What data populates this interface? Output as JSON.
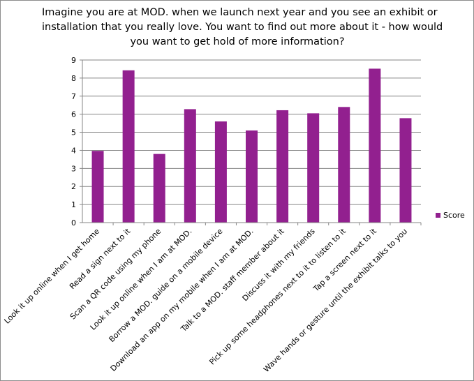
{
  "chart_data": {
    "type": "bar",
    "title_lines": [
      "Imagine you are at MOD. when we launch next year and you see an exhibit or",
      "installation that you really love. You want to find out more  about  it - how would",
      "you want to get hold of more information?"
    ],
    "categories": [
      "Look it up online when I get home",
      "Read a sign next to it",
      "Scan a QR code using my phone",
      "Look it up online when I am at MOD.",
      "Borrow a MOD. guide on a mobile device",
      "Download an app on my mobile when I am at MOD.",
      "Talk to a MOD. staff member about it",
      "Discuss it with my friends",
      "Pick up some headphones next to it to listen to it",
      "Tap a screen next to it",
      "Wave hands or gesture until the exhibit talks to you"
    ],
    "series": [
      {
        "name": "Score",
        "color": "#92208f",
        "values": [
          3.97,
          8.43,
          3.8,
          6.28,
          5.6,
          5.1,
          6.22,
          6.05,
          6.4,
          8.52,
          5.78
        ]
      }
    ],
    "ylim": [
      0,
      9
    ],
    "yticks": [
      "0",
      "1",
      "2",
      "3",
      "4",
      "5",
      "6",
      "7",
      "8",
      "9"
    ],
    "grid": true,
    "legend_position": "right"
  }
}
